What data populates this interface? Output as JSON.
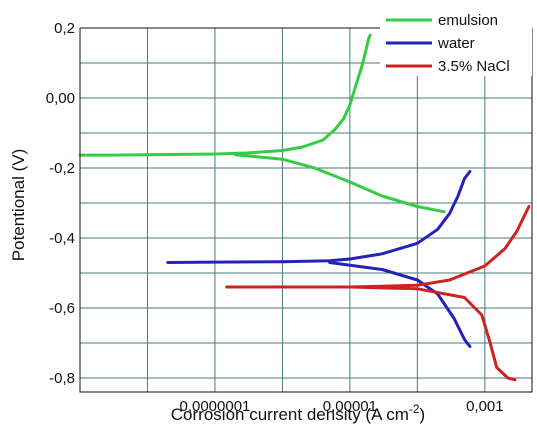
{
  "chart_data": {
    "type": "line",
    "title": "",
    "xlabel": "Corrosion current density (A cm",
    "xlabel_sup": "-2",
    "xlabel_close": ")",
    "ylabel": "Potentional (V)",
    "x_scale": "log",
    "xlim": [
      1e-09,
      0.005
    ],
    "ylim": [
      -0.84,
      0.2
    ],
    "grid": true,
    "legend_position": "top-right",
    "x_ticks": [
      {
        "value": 1e-07,
        "label": "0,0000001"
      },
      {
        "value": 1e-05,
        "label": "0,00001"
      },
      {
        "value": 0.001,
        "label": "0,001"
      }
    ],
    "y_ticks": [
      {
        "value": 0.2,
        "label": "0,2"
      },
      {
        "value": 0.0,
        "label": "0,00"
      },
      {
        "value": -0.2,
        "label": "-0,2"
      },
      {
        "value": -0.4,
        "label": "-0,4"
      },
      {
        "value": -0.6,
        "label": "-0,6"
      },
      {
        "value": -0.8,
        "label": "-0,8"
      }
    ],
    "series": [
      {
        "name": "emulsion",
        "color": "#33cc44",
        "points": [
          [
            1e-09,
            -0.163
          ],
          [
            3e-09,
            -0.163
          ],
          [
            1e-08,
            -0.162
          ],
          [
            3e-08,
            -0.161
          ],
          [
            1e-07,
            -0.16
          ],
          [
            3e-07,
            -0.157
          ],
          [
            1e-06,
            -0.15
          ],
          [
            2e-06,
            -0.14
          ],
          [
            4e-06,
            -0.12
          ],
          [
            6e-06,
            -0.09
          ],
          [
            8e-06,
            -0.06
          ],
          [
            1e-05,
            -0.02
          ],
          [
            1.2e-05,
            0.03
          ],
          [
            1.5e-05,
            0.09
          ],
          [
            1.7e-05,
            0.13
          ],
          [
            1.9e-05,
            0.17
          ],
          [
            2e-05,
            0.18
          ]
        ],
        "points_lower": [
          [
            2e-07,
            -0.162
          ],
          [
            1e-06,
            -0.175
          ],
          [
            3e-06,
            -0.2
          ],
          [
            1e-05,
            -0.24
          ],
          [
            3e-05,
            -0.28
          ],
          [
            0.0001,
            -0.31
          ],
          [
            0.00025,
            -0.325
          ]
        ]
      },
      {
        "name": "water",
        "color": "#2222bb",
        "points": [
          [
            2e-08,
            -0.47
          ],
          [
            1e-07,
            -0.469
          ],
          [
            1e-06,
            -0.468
          ],
          [
            5e-06,
            -0.465
          ],
          [
            1e-05,
            -0.46
          ],
          [
            3e-05,
            -0.445
          ],
          [
            0.0001,
            -0.415
          ],
          [
            0.0002,
            -0.375
          ],
          [
            0.0003,
            -0.33
          ],
          [
            0.0004,
            -0.28
          ],
          [
            0.0005,
            -0.23
          ],
          [
            0.0006,
            -0.21
          ]
        ],
        "points_lower": [
          [
            5e-06,
            -0.47
          ],
          [
            3e-05,
            -0.49
          ],
          [
            0.0001,
            -0.52
          ],
          [
            0.0002,
            -0.56
          ],
          [
            0.00035,
            -0.63
          ],
          [
            0.0005,
            -0.69
          ],
          [
            0.0006,
            -0.71
          ]
        ]
      },
      {
        "name": "3.5% NaCl",
        "color": "#cc2222",
        "points": [
          [
            1.5e-07,
            -0.54
          ],
          [
            1e-06,
            -0.54
          ],
          [
            1e-05,
            -0.54
          ],
          [
            0.0001,
            -0.535
          ],
          [
            0.0003,
            -0.52
          ],
          [
            0.001,
            -0.48
          ],
          [
            0.002,
            -0.43
          ],
          [
            0.003,
            -0.38
          ],
          [
            0.0045,
            -0.31
          ]
        ],
        "points_lower": [
          [
            1e-05,
            -0.54
          ],
          [
            0.0001,
            -0.545
          ],
          [
            0.0005,
            -0.57
          ],
          [
            0.0009,
            -0.62
          ],
          [
            0.0012,
            -0.7
          ],
          [
            0.0015,
            -0.77
          ],
          [
            0.0022,
            -0.8
          ],
          [
            0.0028,
            -0.805
          ]
        ]
      }
    ]
  }
}
